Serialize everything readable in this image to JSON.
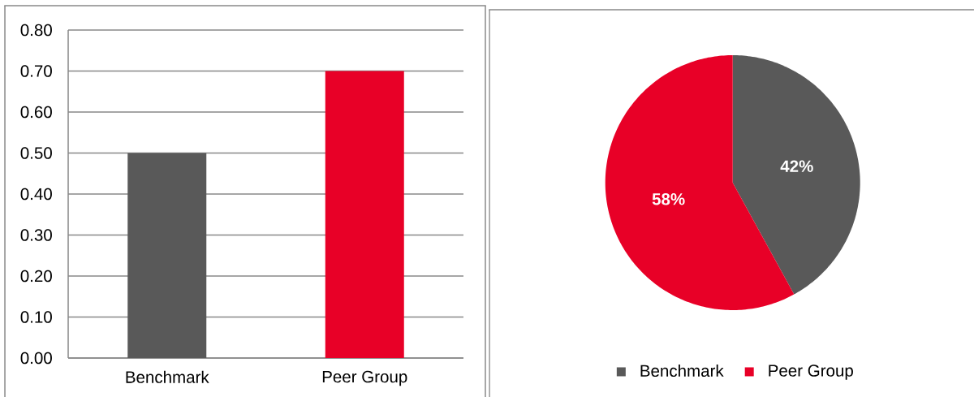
{
  "chart_data": [
    {
      "type": "bar",
      "categories": [
        "Benchmark",
        "Peer Group"
      ],
      "values": [
        0.5,
        0.7
      ],
      "colors": [
        "#595959",
        "#e80027"
      ],
      "ylim": [
        0,
        0.8
      ],
      "yticks": [
        {
          "value": 0,
          "label": "0.00"
        },
        {
          "value": 0.1,
          "label": "0.10"
        },
        {
          "value": 0.2,
          "label": "0.20"
        },
        {
          "value": 0.3,
          "label": "0.30"
        },
        {
          "value": 0.4,
          "label": "0.40"
        },
        {
          "value": 0.5,
          "label": "0.50"
        },
        {
          "value": 0.6,
          "label": "0.60"
        },
        {
          "value": 0.7,
          "label": "0.70"
        },
        {
          "value": 0.8,
          "label": "0.80"
        }
      ],
      "grid": "y"
    },
    {
      "type": "pie",
      "categories": [
        "Benchmark",
        "Peer Group"
      ],
      "values": [
        42,
        58
      ],
      "colors": [
        "#595959",
        "#e80027"
      ],
      "value_labels": [
        "42%",
        "58%"
      ],
      "legend": "bottom"
    }
  ]
}
